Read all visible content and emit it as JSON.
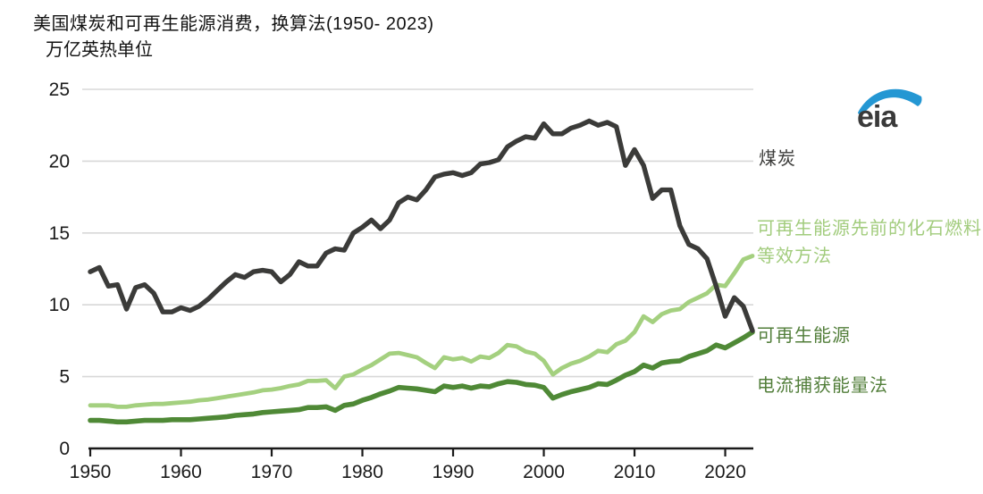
{
  "logo": {
    "text": "eia",
    "swoosh_color": "#2497d3",
    "text_color": "#3a3a3a"
  },
  "axis": {
    "tick_color": "#1a1a1a",
    "grid_color": "#d8d8d8",
    "label_color": "#1a1a1a"
  },
  "chart_data": {
    "type": "line",
    "title": "美国煤炭和可再生能源消费，换算法(1950- 2023)",
    "ylabel": "万亿英热单位",
    "xlabel": "",
    "x_start": 1950,
    "x_end": 2023,
    "x_ticks": [
      1950,
      1960,
      1970,
      1980,
      1990,
      2000,
      2010,
      2020
    ],
    "y_ticks": [
      0,
      5,
      10,
      15,
      20,
      25
    ],
    "ylim": [
      0,
      25
    ],
    "grid": "horizontal",
    "legend_position": "right-annotations",
    "series": [
      {
        "name": "煤炭",
        "color": "#3b3b39",
        "values": [
          12.3,
          12.6,
          11.3,
          11.4,
          9.7,
          11.2,
          11.4,
          10.8,
          9.5,
          9.5,
          9.8,
          9.6,
          9.9,
          10.4,
          11.0,
          11.6,
          12.1,
          11.9,
          12.3,
          12.4,
          12.3,
          11.6,
          12.1,
          13.0,
          12.7,
          12.7,
          13.6,
          13.9,
          13.8,
          15.0,
          15.4,
          15.9,
          15.3,
          15.9,
          17.1,
          17.5,
          17.3,
          18.0,
          18.9,
          19.1,
          19.2,
          19.0,
          19.2,
          19.8,
          19.9,
          20.1,
          21.0,
          21.4,
          21.7,
          21.6,
          22.6,
          21.9,
          21.9,
          22.3,
          22.5,
          22.8,
          22.5,
          22.7,
          22.4,
          19.7,
          20.8,
          19.7,
          17.4,
          18.0,
          18.0,
          15.5,
          14.2,
          13.9,
          13.2,
          11.3,
          9.2,
          10.5,
          9.9,
          8.2
        ]
      },
      {
        "name": "可再生能源，先前的化石燃料等效方法",
        "color": "#a4d07f",
        "values": [
          3.0,
          3.0,
          3.0,
          2.9,
          2.9,
          3.0,
          3.05,
          3.1,
          3.1,
          3.15,
          3.2,
          3.25,
          3.35,
          3.4,
          3.5,
          3.6,
          3.7,
          3.8,
          3.9,
          4.05,
          4.1,
          4.2,
          4.35,
          4.45,
          4.7,
          4.7,
          4.75,
          4.2,
          5.0,
          5.15,
          5.5,
          5.8,
          6.2,
          6.6,
          6.65,
          6.5,
          6.35,
          5.95,
          5.6,
          6.35,
          6.2,
          6.3,
          6.05,
          6.4,
          6.3,
          6.65,
          7.2,
          7.1,
          6.75,
          6.6,
          6.1,
          5.15,
          5.6,
          5.9,
          6.1,
          6.4,
          6.8,
          6.7,
          7.25,
          7.5,
          8.1,
          9.2,
          8.8,
          9.35,
          9.6,
          9.7,
          10.2,
          10.5,
          10.8,
          11.4,
          11.3,
          12.2,
          13.15,
          13.4
        ]
      },
      {
        "name": "可再生能源，电流捕获能量法",
        "color": "#4f8936",
        "values": [
          1.95,
          1.95,
          1.9,
          1.85,
          1.85,
          1.9,
          1.95,
          1.95,
          1.95,
          2.0,
          2.0,
          2.0,
          2.05,
          2.1,
          2.15,
          2.2,
          2.3,
          2.35,
          2.4,
          2.5,
          2.55,
          2.6,
          2.65,
          2.7,
          2.85,
          2.85,
          2.9,
          2.65,
          3.0,
          3.1,
          3.35,
          3.55,
          3.8,
          4.0,
          4.25,
          4.2,
          4.15,
          4.05,
          3.95,
          4.35,
          4.25,
          4.35,
          4.2,
          4.35,
          4.3,
          4.5,
          4.65,
          4.6,
          4.45,
          4.4,
          4.25,
          3.5,
          3.75,
          3.95,
          4.1,
          4.25,
          4.5,
          4.45,
          4.75,
          5.1,
          5.35,
          5.8,
          5.6,
          5.95,
          6.05,
          6.1,
          6.4,
          6.6,
          6.8,
          7.2,
          7.0,
          7.35,
          7.7,
          8.1
        ]
      }
    ],
    "annotations": [
      {
        "text": "煤炭",
        "color": "#3d3d3b"
      },
      {
        "text": "可再生能源先前的化石燃料等效方法",
        "color": "#a2cc7d"
      },
      {
        "text": "可再生能源",
        "color": "#527e3a"
      },
      {
        "text": "电流捕获能量法",
        "color": "#527e3a"
      }
    ]
  }
}
